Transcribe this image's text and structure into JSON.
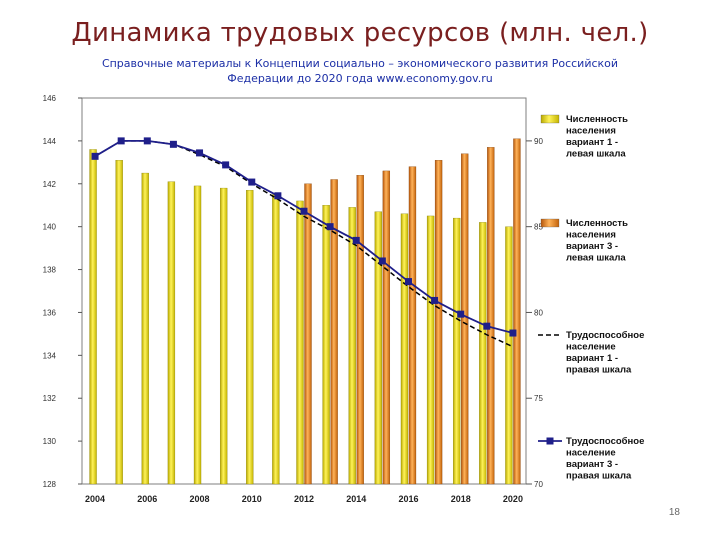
{
  "slide": {
    "title": "Динамика трудовых ресурсов   (млн. чел.)",
    "subtitle_line1": "Справочные материалы к Концепции социально – экономического развития Российской",
    "subtitle_line2": "Федерации до 2020 года  www.economy.gov.ru",
    "page_number": "18"
  },
  "chart_data": {
    "type": "bar",
    "title": "",
    "xlabel": "",
    "ylabel": "",
    "x": [
      2004,
      2005,
      2006,
      2007,
      2008,
      2009,
      2010,
      2011,
      2012,
      2013,
      2014,
      2015,
      2016,
      2017,
      2018,
      2019,
      2020
    ],
    "x_tick_labels": [
      "2004",
      "2006",
      "2008",
      "2010",
      "2012",
      "2014",
      "2016",
      "2018",
      "2020"
    ],
    "y_left": {
      "range": [
        128,
        146
      ],
      "ticks": [
        "146",
        "144",
        "142",
        "140",
        "138",
        "136",
        "134",
        "132",
        "130",
        "128"
      ]
    },
    "y_right": {
      "range": [
        70,
        92.5
      ],
      "ticks": [
        "90",
        "85",
        "80",
        "75",
        "70"
      ]
    },
    "grid": false,
    "legend_position": "right",
    "series": [
      {
        "name": "Численность населения вариант 1 - левая шкала",
        "kind": "bar",
        "axis": "left",
        "color": "#e8e000",
        "values": [
          143.6,
          143.1,
          142.5,
          142.1,
          141.9,
          141.8,
          141.7,
          141.5,
          141.2,
          141.0,
          140.9,
          140.7,
          140.6,
          140.5,
          140.4,
          140.2,
          140.0
        ]
      },
      {
        "name": "Численность населения вариант 3 - левая шкала",
        "kind": "bar",
        "axis": "left",
        "color": "#e88a10",
        "values": [
          null,
          null,
          null,
          null,
          null,
          null,
          null,
          null,
          142.0,
          142.2,
          142.4,
          142.6,
          142.8,
          143.1,
          143.4,
          143.7,
          144.1
        ]
      },
      {
        "name": "Трудоспособное население вариант 1 - правая шкала",
        "kind": "line",
        "axis": "right",
        "color": "#000000",
        "dash": true,
        "values": [
          89.1,
          90.0,
          90.0,
          89.8,
          89.2,
          88.5,
          87.5,
          86.6,
          85.6,
          84.8,
          83.9,
          82.7,
          81.5,
          80.4,
          79.5,
          78.7,
          78.0
        ]
      },
      {
        "name": "Трудоспособное население вариант 3 - правая шкала",
        "kind": "line",
        "axis": "right",
        "color": "#1f1f8a",
        "dash": false,
        "values": [
          89.1,
          90.0,
          90.0,
          89.8,
          89.3,
          88.6,
          87.6,
          86.8,
          85.9,
          85.0,
          84.2,
          83.0,
          81.8,
          80.7,
          79.9,
          79.2,
          78.8
        ]
      }
    ]
  }
}
